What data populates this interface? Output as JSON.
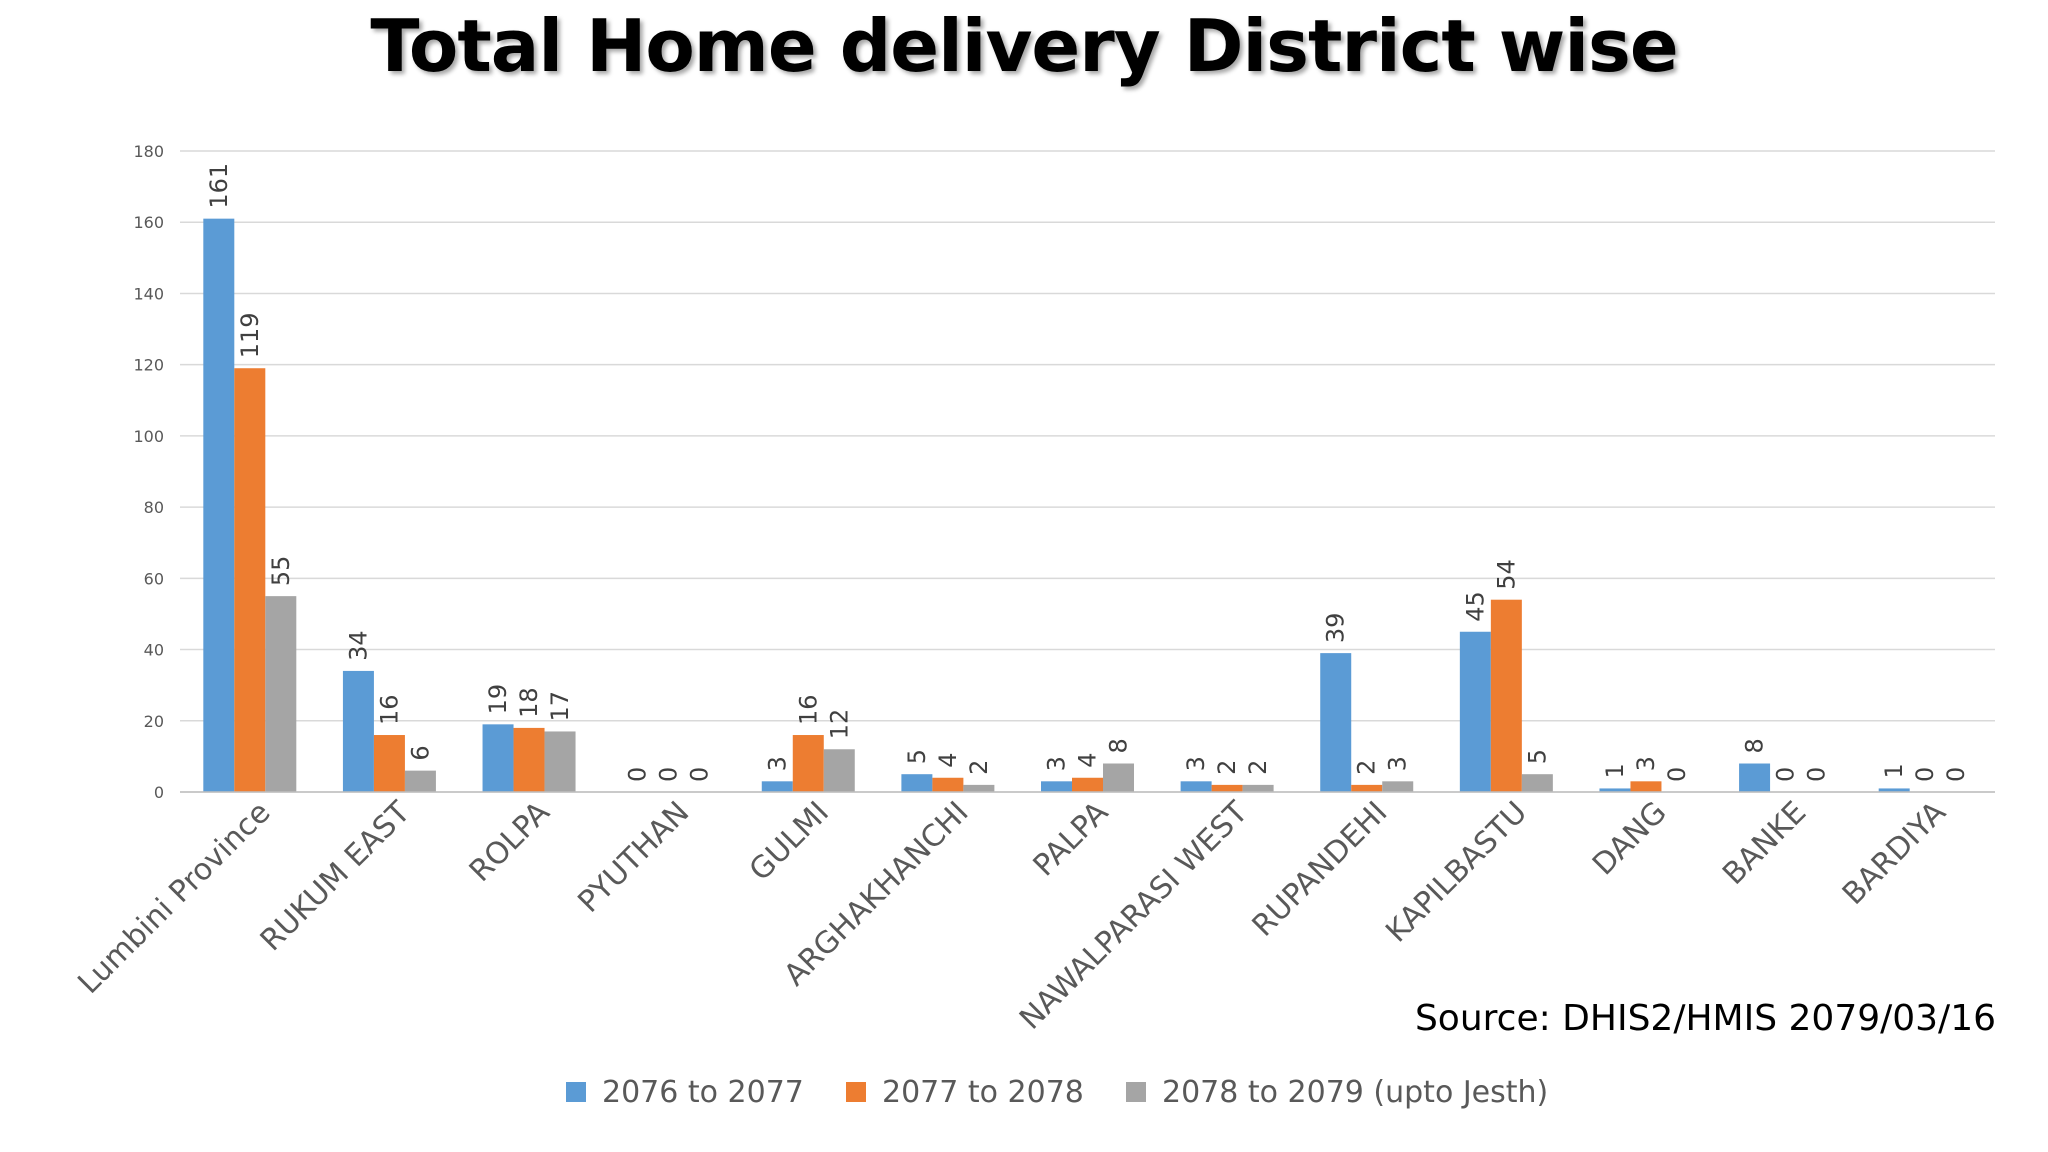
{
  "chart_data": {
    "type": "bar",
    "title": "Total Home delivery District wise",
    "categories": [
      "Lumbini Province",
      "RUKUM EAST",
      "ROLPA",
      "PYUTHAN",
      "GULMI",
      "ARGHAKHANCHI",
      "PALPA",
      "NAWALPARASI WEST",
      "RUPANDEHI",
      "KAPILBASTU",
      "DANG",
      "BANKE",
      "BARDIYA"
    ],
    "series": [
      {
        "name": "2076 to  2077",
        "color": "#5b9bd5",
        "values": [
          161,
          34,
          19,
          0,
          3,
          5,
          3,
          3,
          39,
          45,
          1,
          8,
          1
        ]
      },
      {
        "name": "2077 to  2078",
        "color": "#ed7d31",
        "values": [
          119,
          16,
          18,
          0,
          16,
          4,
          4,
          2,
          2,
          54,
          3,
          0,
          0
        ]
      },
      {
        "name": "2078 to  2079 (upto Jesth)",
        "color": "#a5a5a5",
        "values": [
          55,
          6,
          17,
          0,
          12,
          2,
          8,
          2,
          3,
          5,
          0,
          0,
          0
        ]
      }
    ],
    "ylim": [
      0,
      180
    ],
    "yticks": [
      0,
      20,
      40,
      60,
      80,
      100,
      120,
      140,
      160,
      180
    ],
    "xlabel": "",
    "ylabel": "",
    "grid": true,
    "legend": "bottom"
  },
  "source_note": "Source: DHIS2/HMIS 2079/03/16"
}
